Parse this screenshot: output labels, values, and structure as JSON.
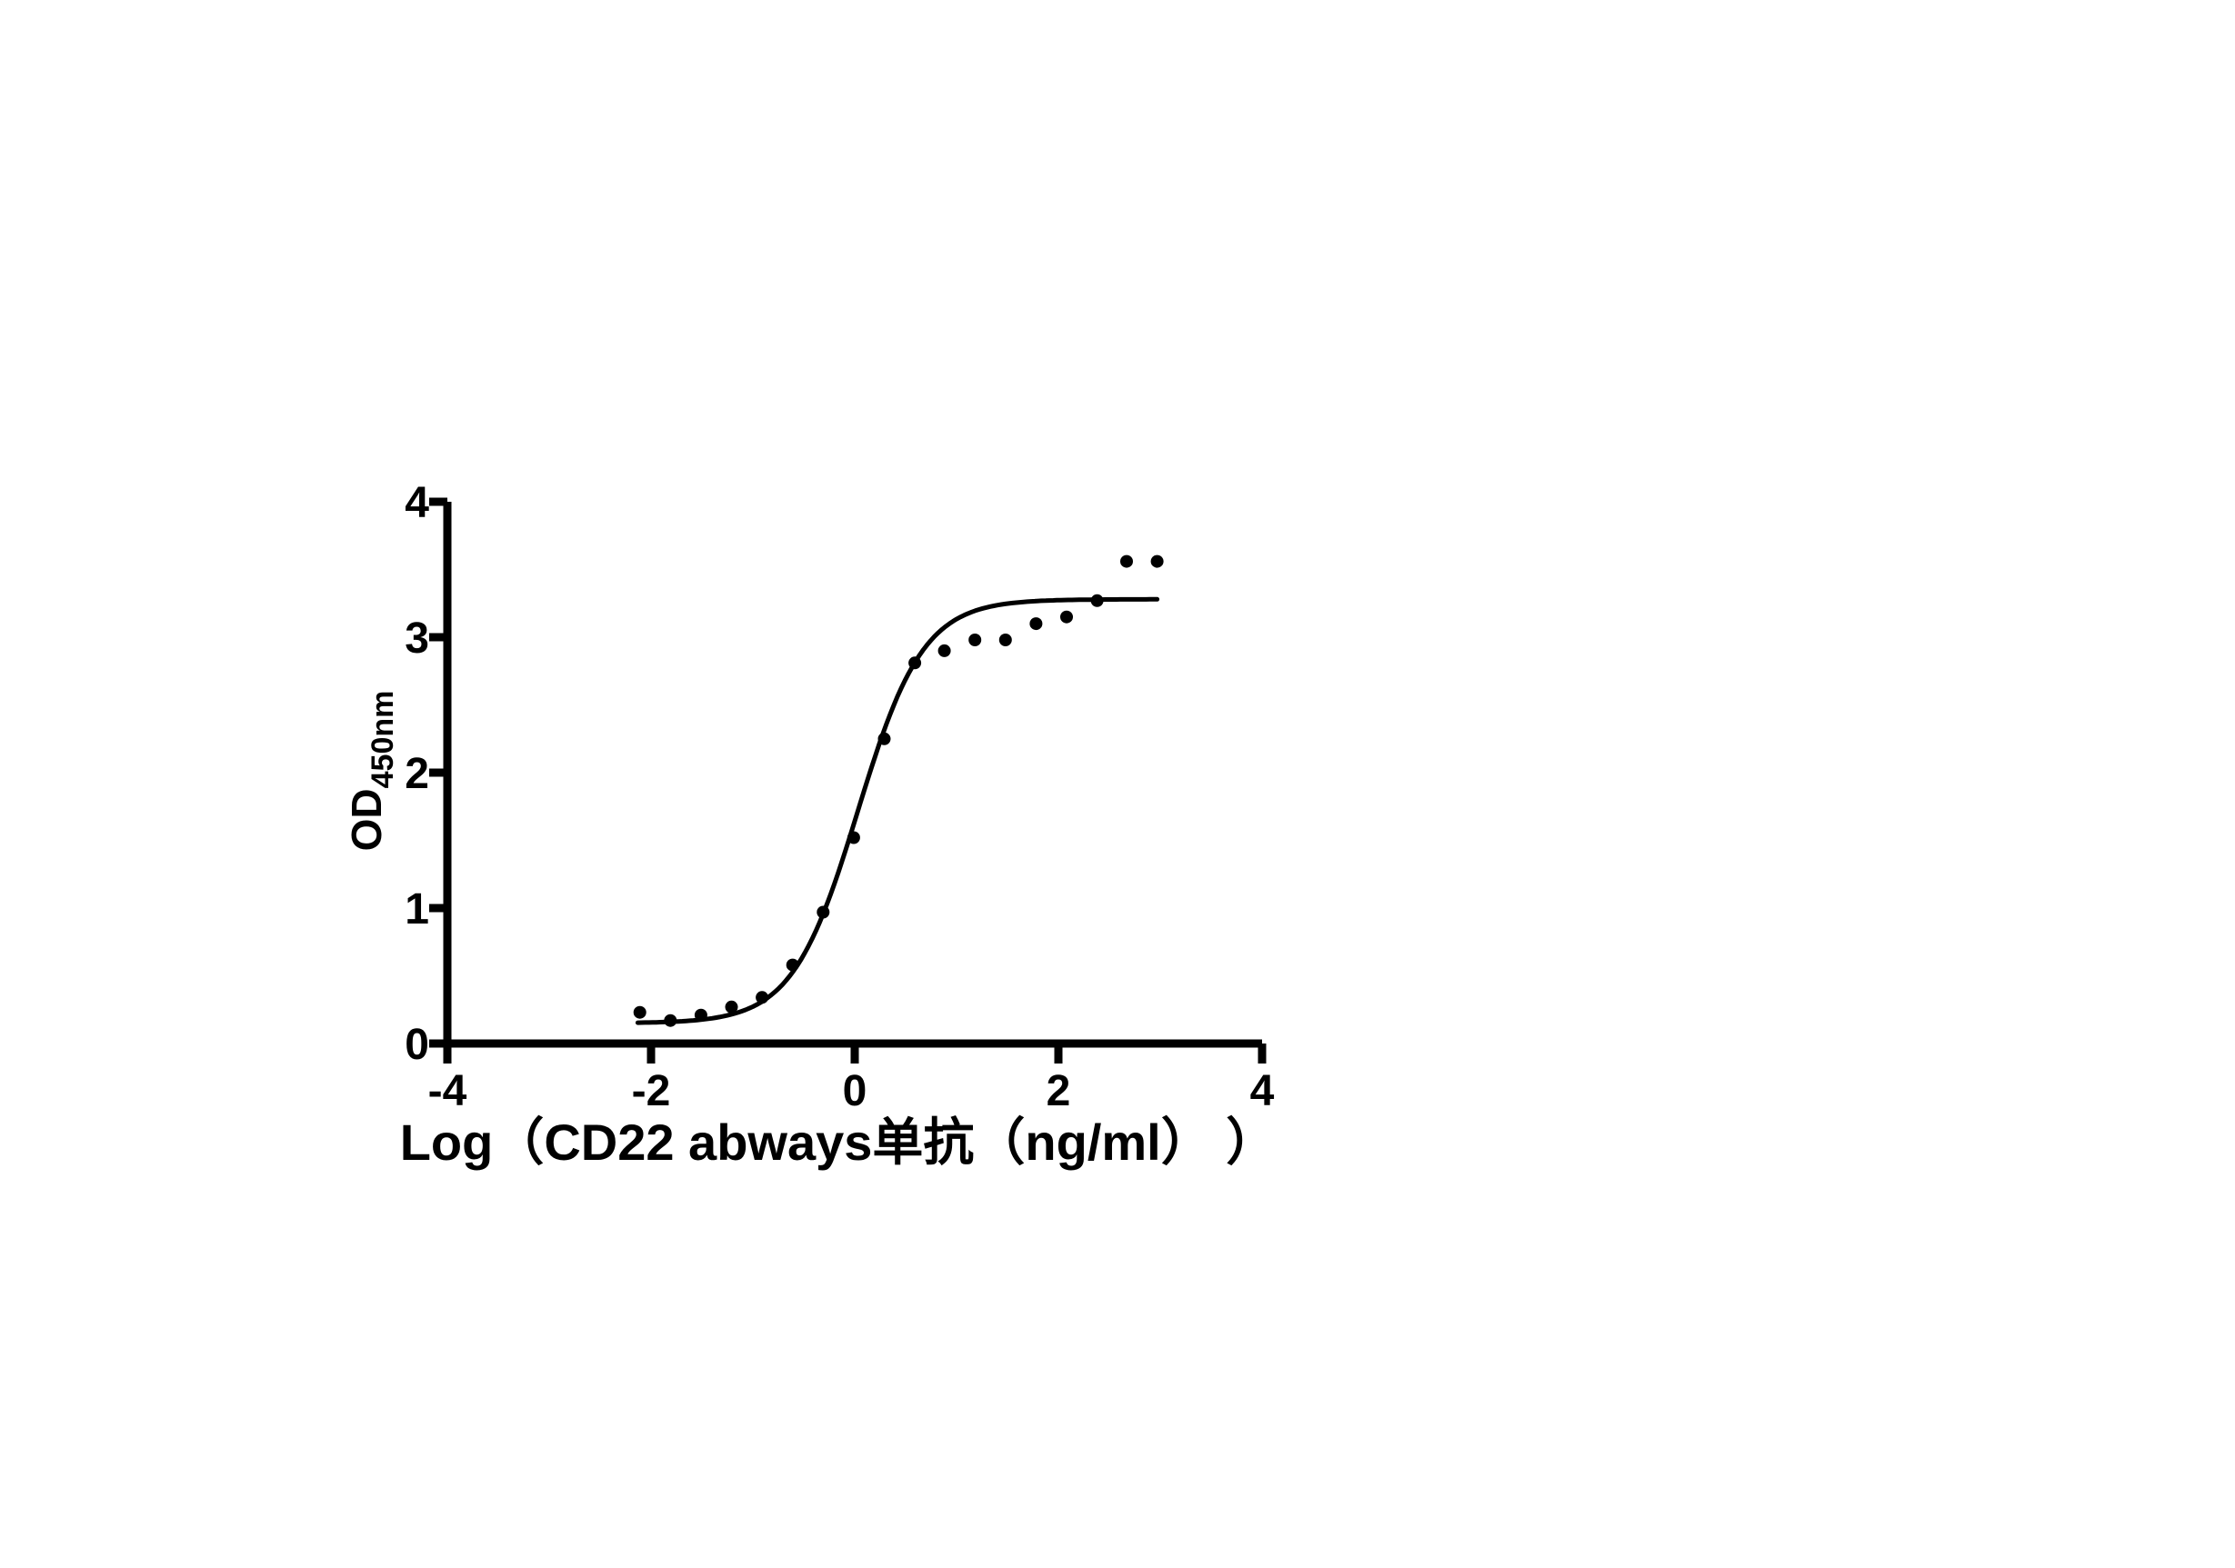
{
  "figure": {
    "background_color": "#ffffff",
    "ink_color": "#000000"
  },
  "chart_data": {
    "type": "scatter",
    "title": "",
    "xlabel": "Log（CD22 abways单抗（ng/ml） ）",
    "ylabel": {
      "main": "OD",
      "sub": "450nm"
    },
    "xlim": [
      -4,
      4
    ],
    "ylim": [
      0,
      4
    ],
    "x_ticks": [
      -4,
      -2,
      0,
      2,
      4
    ],
    "y_ticks": [
      0,
      1,
      2,
      3,
      4
    ],
    "grid": false,
    "legend": null,
    "marker": {
      "shape": "circle",
      "color": "#000000",
      "radius_px": 7
    },
    "line_color": "#000000",
    "x": [
      -2.11,
      -1.81,
      -1.51,
      -1.21,
      -0.91,
      -0.61,
      -0.31,
      -0.01,
      0.29,
      0.59,
      0.88,
      1.18,
      1.48,
      1.78,
      2.08,
      2.38,
      2.67,
      2.97
    ],
    "y": [
      0.23,
      0.17,
      0.21,
      0.27,
      0.34,
      0.58,
      0.97,
      1.52,
      2.25,
      2.81,
      2.9,
      2.98,
      2.98,
      3.1,
      3.15,
      3.27,
      3.56,
      3.56
    ],
    "fit_curve": {
      "model": "4PL-sigmoid",
      "bottom": 0.15,
      "top": 3.28,
      "logEC50": 0.03,
      "hillslope": 1.35,
      "x_start": -2.13,
      "x_end": 2.97
    }
  }
}
